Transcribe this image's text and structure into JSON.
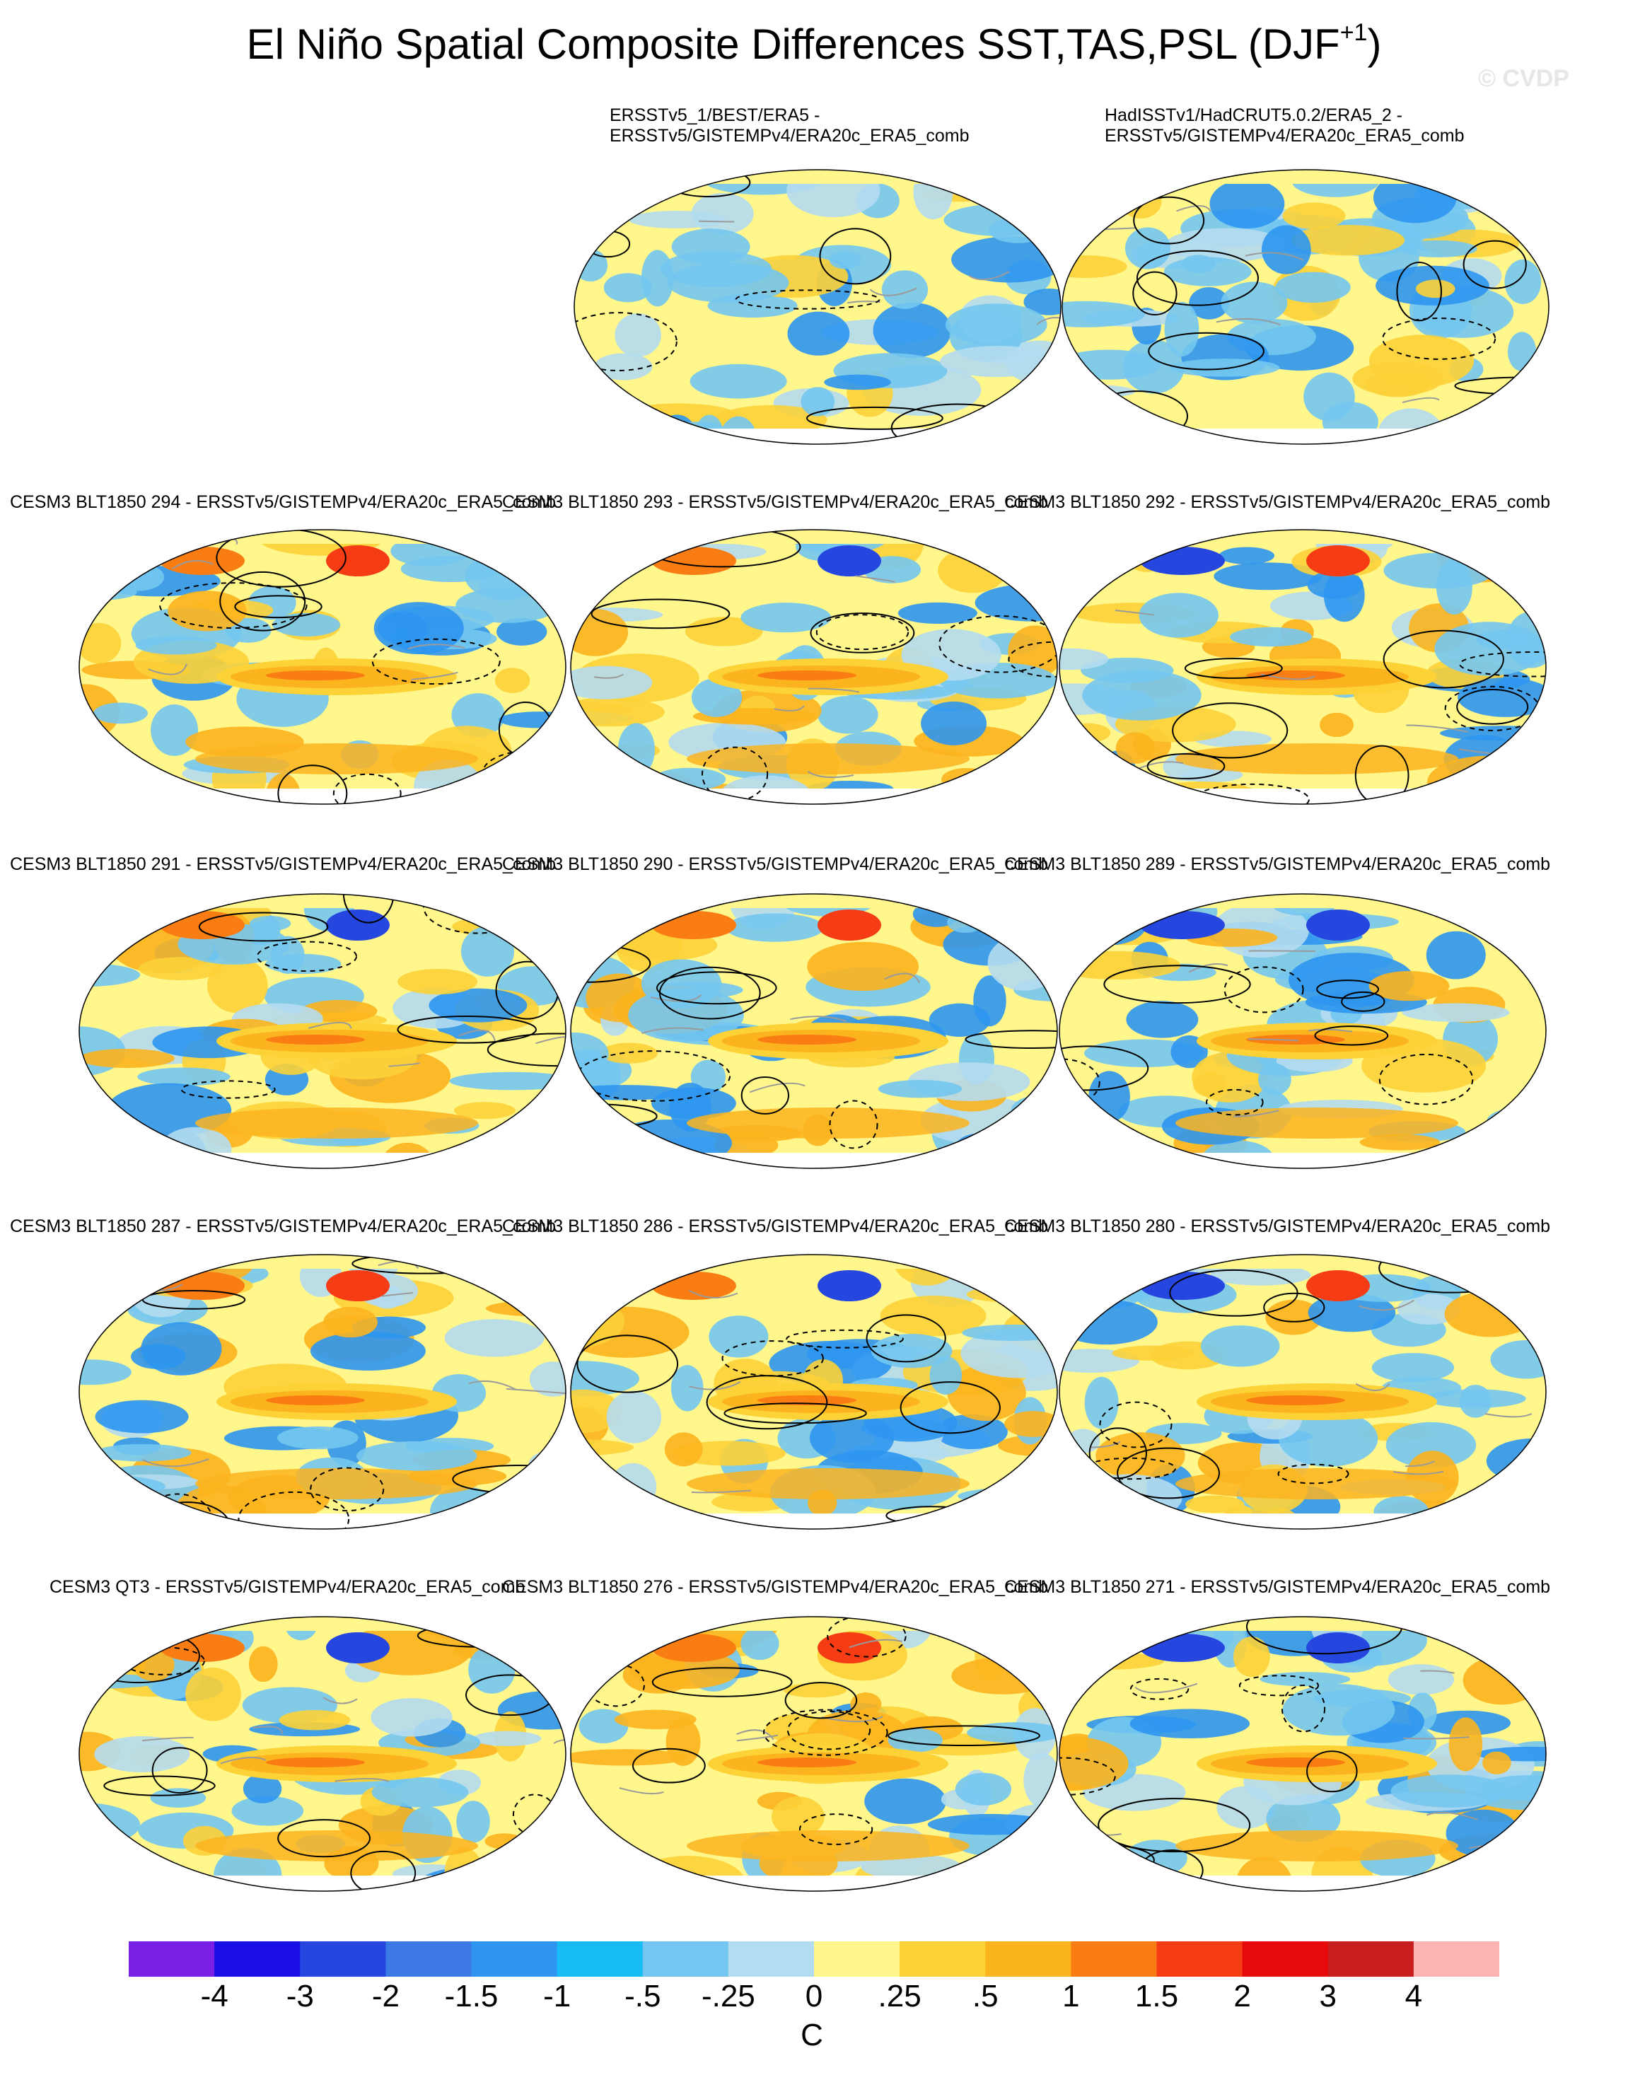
{
  "figure": {
    "title_main": "El Niño Spatial Composite Differences SST,TAS,PSL (DJF",
    "title_sup": "+1",
    "title_close": ")",
    "watermark": "© CVDP"
  },
  "panels": [
    {
      "id": "obs1",
      "label": "ERSSTv5_1/BEST/ERA5 -\nERSSTv5/GISTEMPv4/ERA20c_ERA5_comb"
    },
    {
      "id": "obs2",
      "label": "HadISSTv1/HadCRUT5.0.2/ERA5_2 -\nERSSTv5/GISTEMPv4/ERA20c_ERA5_comb"
    },
    {
      "id": "m294",
      "label": "CESM3 BLT1850 294 - ERSSTv5/GISTEMPv4/ERA20c_ERA5_comb"
    },
    {
      "id": "m293",
      "label": "CESM3 BLT1850 293 - ERSSTv5/GISTEMPv4/ERA20c_ERA5_comb"
    },
    {
      "id": "m292",
      "label": "CESM3 BLT1850 292 - ERSSTv5/GISTEMPv4/ERA20c_ERA5_comb"
    },
    {
      "id": "m291",
      "label": "CESM3 BLT1850 291 - ERSSTv5/GISTEMPv4/ERA20c_ERA5_comb"
    },
    {
      "id": "m290",
      "label": "CESM3 BLT1850 290 - ERSSTv5/GISTEMPv4/ERA20c_ERA5_comb"
    },
    {
      "id": "m289",
      "label": "CESM3 BLT1850 289 - ERSSTv5/GISTEMPv4/ERA20c_ERA5_comb"
    },
    {
      "id": "m287",
      "label": "CESM3 BLT1850 287 - ERSSTv5/GISTEMPv4/ERA20c_ERA5_comb"
    },
    {
      "id": "m286",
      "label": "CESM3 BLT1850 286 - ERSSTv5/GISTEMPv4/ERA20c_ERA5_comb"
    },
    {
      "id": "m280",
      "label": "CESM3 BLT1850 280 - ERSSTv5/GISTEMPv4/ERA20c_ERA5_comb"
    },
    {
      "id": "qt3",
      "label": "CESM3 QT3 - ERSSTv5/GISTEMPv4/ERA20c_ERA5_comb"
    },
    {
      "id": "m276",
      "label": "CESM3 BLT1850 276 - ERSSTv5/GISTEMPv4/ERA20c_ERA5_comb"
    },
    {
      "id": "m271",
      "label": "CESM3 BLT1850 271 - ERSSTv5/GISTEMPv4/ERA20c_ERA5_comb"
    }
  ],
  "colorbar": {
    "labels": [
      "-4",
      "-3",
      "-2",
      "-1.5",
      "-1",
      "-.5",
      "-.25",
      "0",
      ".25",
      ".5",
      "1",
      "1.5",
      "2",
      "3",
      "4"
    ],
    "colors": [
      "#7a1fe6",
      "#1a0fe6",
      "#2646e0",
      "#3c78e6",
      "#2e96f0",
      "#16bcf5",
      "#74c6f0",
      "#b4dcf0",
      "#fff68c",
      "#fcd237",
      "#fcb41e",
      "#fa7d14",
      "#f53c14",
      "#e60a0a",
      "#c81e1e",
      "#ffb4b4"
    ],
    "unit": "C"
  }
}
